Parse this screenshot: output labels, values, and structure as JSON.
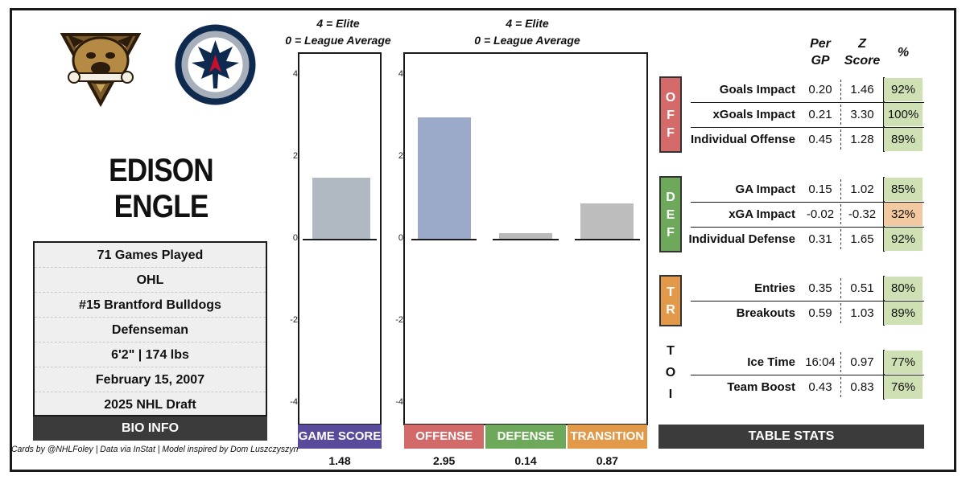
{
  "player": {
    "name": "EDISON ENGLE",
    "logos": [
      "bulldogs-logo",
      "jets-logo"
    ]
  },
  "bio": {
    "rows": [
      "71 Games Played",
      "OHL",
      "#15 Brantford Bulldogs",
      "Defenseman",
      "6'2\" | 174 lbs",
      "February 15, 2007",
      "2025 NHL Draft"
    ],
    "header": "BIO INFO"
  },
  "credit": "Cards by @NHLFoley | Data via InStat | Model inspired by Dom Luszczyszyn",
  "scale_note": {
    "line1": "4 = Elite",
    "line2": "0 = League Average"
  },
  "chart_data": [
    {
      "type": "bar",
      "categories": [
        "GAME SCORE"
      ],
      "values": [
        1.48
      ],
      "ylim": [
        -4.5,
        4.5
      ],
      "yticks": [
        4,
        2,
        0,
        -2,
        -4
      ],
      "colors": [
        "#b0b8c1"
      ],
      "label_colors": [
        "#5a4a9c"
      ]
    },
    {
      "type": "bar",
      "categories": [
        "OFFENSE",
        "DEFENSE",
        "TRANSITION"
      ],
      "values": [
        2.95,
        0.14,
        0.87
      ],
      "ylim": [
        -4.5,
        4.5
      ],
      "yticks": [
        4,
        2,
        0,
        -2,
        -4
      ],
      "colors": [
        "#9aaac8",
        "#b9b9b9",
        "#bdbdbd"
      ],
      "label_colors": [
        "#d36a6a",
        "#6ea85a",
        "#e2994a"
      ]
    }
  ],
  "table": {
    "headers": {
      "per_gp": [
        "Per",
        "GP"
      ],
      "z_score": [
        "Z",
        "Score"
      ],
      "pct": "%"
    },
    "groups": [
      {
        "tag": [
          "O",
          "F",
          "F"
        ],
        "color": "#d46a6a",
        "rows": [
          {
            "label": "Goals Impact",
            "per_gp": "0.20",
            "z": "1.46",
            "pct": "92%",
            "pct_color": "#cfe0b4"
          },
          {
            "label": "xGoals Impact",
            "per_gp": "0.21",
            "z": "3.30",
            "pct": "100%",
            "pct_color": "#cfe0b4"
          },
          {
            "label": "Individual Offense",
            "per_gp": "0.45",
            "z": "1.28",
            "pct": "89%",
            "pct_color": "#cfe0b4"
          }
        ]
      },
      {
        "tag": [
          "D",
          "E",
          "F"
        ],
        "color": "#6ea85a",
        "rows": [
          {
            "label": "GA Impact",
            "per_gp": "0.15",
            "z": "1.02",
            "pct": "85%",
            "pct_color": "#cfe0b4"
          },
          {
            "label": "xGA Impact",
            "per_gp": "-0.02",
            "z": "-0.32",
            "pct": "32%",
            "pct_color": "#f3c9a1"
          },
          {
            "label": "Individual Defense",
            "per_gp": "0.31",
            "z": "1.65",
            "pct": "92%",
            "pct_color": "#cfe0b4"
          }
        ]
      },
      {
        "tag": [
          "T",
          "R"
        ],
        "color": "#e2994a",
        "rows": [
          {
            "label": "Entries",
            "per_gp": "0.35",
            "z": "0.51",
            "pct": "80%",
            "pct_color": "#cfe0b4"
          },
          {
            "label": "Breakouts",
            "per_gp": "0.59",
            "z": "1.03",
            "pct": "89%",
            "pct_color": "#cfe0b4"
          }
        ]
      },
      {
        "tag": [
          "T",
          "O",
          "I"
        ],
        "color": "",
        "rows": [
          {
            "label": "Ice Time",
            "per_gp": "16:04",
            "z": "0.97",
            "pct": "77%",
            "pct_color": "#cfe0b4"
          },
          {
            "label": "Team Boost",
            "per_gp": "0.43",
            "z": "0.83",
            "pct": "76%",
            "pct_color": "#cfe0b4"
          }
        ]
      }
    ],
    "footer": "TABLE STATS"
  }
}
